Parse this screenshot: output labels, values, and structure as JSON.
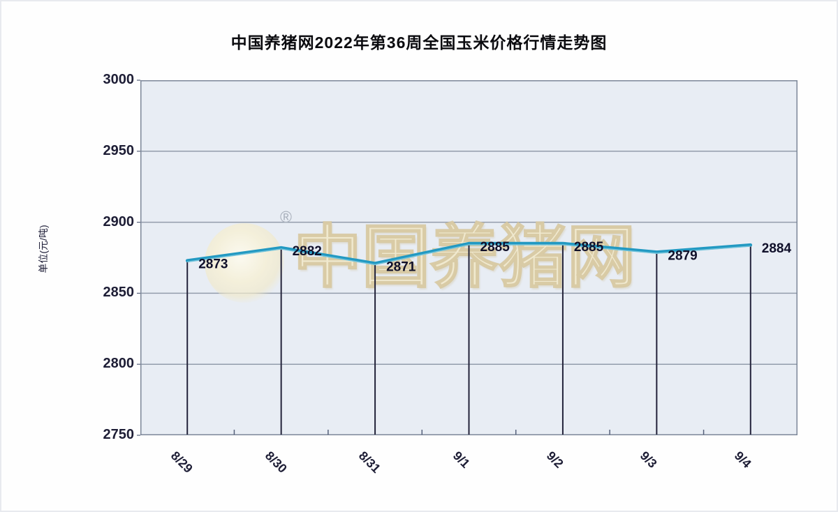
{
  "chart_data": {
    "type": "line",
    "title": "中国养猪网2022年第36周全国玉米价格行情走势图",
    "ylabel": "单位(元/吨)",
    "xlabel": "",
    "categories": [
      "8/29",
      "8/30",
      "8/31",
      "9/1",
      "9/2",
      "9/3",
      "9/4"
    ],
    "values": [
      2873,
      2882,
      2871,
      2885,
      2885,
      2879,
      2884
    ],
    "ylim": [
      2750,
      3000
    ],
    "y_ticks": [
      3000,
      2950,
      2900,
      2850,
      2800,
      2750
    ],
    "grid": true,
    "legend": "none",
    "colors": {
      "line": "#2299c2",
      "line_highlight": "#79c7dd",
      "drop_line": "#23233a",
      "plot_bg": "#e8edf4",
      "grid_line": "#929cab",
      "plot_border": "#7c8799",
      "axis_tick": "#55607a",
      "data_label": "#10102a",
      "tick_label": "#1d1d35"
    }
  },
  "watermark": {
    "text": "中国养猪网",
    "registered_mark": "®"
  }
}
